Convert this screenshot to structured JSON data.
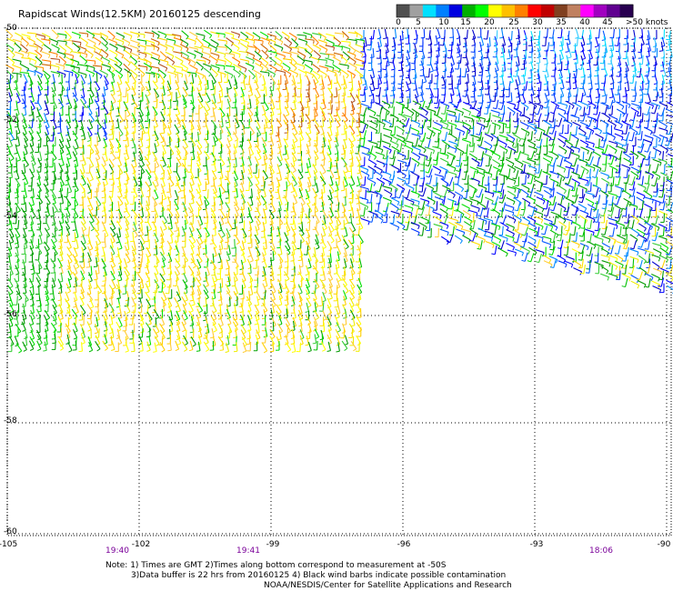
{
  "title": "Rapidscat Winds(12.5KM) 20160125 descending",
  "legend": {
    "labels": [
      "0",
      "5",
      "10",
      "15",
      "20",
      "25",
      "30",
      "35",
      "40",
      "45"
    ],
    "unit": ">50 knots",
    "colors": [
      "#505050",
      "#a0a0a0",
      "#00e0ff",
      "#0080ff",
      "#0000e0",
      "#00b000",
      "#00ff00",
      "#ffff00",
      "#ffc000",
      "#ff8000",
      "#ff0000",
      "#c00000",
      "#804020",
      "#c08060",
      "#ff00ff",
      "#a000c0",
      "#600090",
      "#280050"
    ]
  },
  "map": {
    "lat_labels": [
      "-50",
      "-52",
      "-54",
      "-56",
      "-58",
      "-60"
    ],
    "lon_labels": [
      "-105",
      "-102",
      "-99",
      "-96",
      "-93",
      "-90"
    ],
    "time_labels": [
      "19:40",
      "19:41",
      "18:06"
    ],
    "time_color": "#7a0099",
    "grid_style": "dotted"
  },
  "footnote": {
    "line1": "Note: 1) Times are GMT 2)Times along bottom correspond to measurement at -50S",
    "line2": "3)Data buffer is 22 hrs from 20160125 4) Black wind barbs indicate possible contamination",
    "line3": "NOAA/NESDIS/Center for Satellite Applications and Research"
  }
}
